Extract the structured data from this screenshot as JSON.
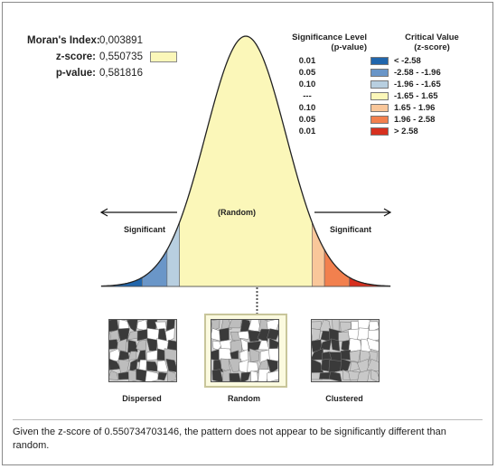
{
  "stats": {
    "morans_label": "Moran's Index:",
    "morans_value": "0,003891",
    "z_label": "z-score:",
    "z_value": "0,550735",
    "p_label": "p-value:",
    "p_value": "0,581816"
  },
  "legend": {
    "sig_header_1": "Significance Level",
    "sig_header_2": "(p-value)",
    "crit_header_1": "Critical Value",
    "crit_header_2": "(z-score)",
    "items": [
      {
        "sig": "0.01",
        "range": "< -2.58",
        "color": "#2166ac"
      },
      {
        "sig": "0.05",
        "range": "-2.58 - -1.96",
        "color": "#6a96c8"
      },
      {
        "sig": "0.10",
        "range": "-1.96 - -1.65",
        "color": "#b8cfe0"
      },
      {
        "sig": "---",
        "range": "-1.65 - 1.65",
        "color": "#fbf7b9"
      },
      {
        "sig": "0.10",
        "range": "1.65 - 1.96",
        "color": "#f9c79a"
      },
      {
        "sig": "0.05",
        "range": "1.96 - 2.58",
        "color": "#f2804e"
      },
      {
        "sig": "0.01",
        "range": "> 2.58",
        "color": "#d7301f"
      }
    ]
  },
  "chart_data": {
    "type": "area",
    "z_score": 0.550735,
    "xlim": [
      -3.6,
      3.6
    ],
    "breaks": [
      -2.58,
      -1.96,
      -1.65,
      1.65,
      1.96,
      2.58
    ],
    "labels": {
      "center": "(Random)",
      "left": "Significant",
      "right": "Significant"
    }
  },
  "maps": [
    {
      "label": "Dispersed"
    },
    {
      "label": "Random"
    },
    {
      "label": "Clustered"
    }
  ],
  "conclusion": "Given the z-score of 0.550734703146, the pattern does not appear to be significantly different than random."
}
